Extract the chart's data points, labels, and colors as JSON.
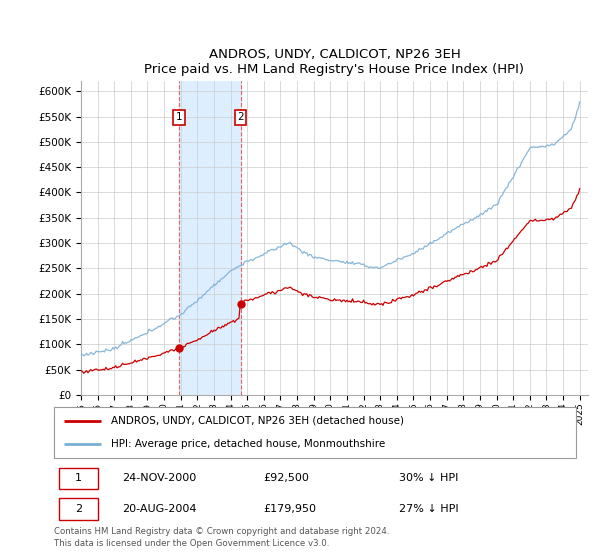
{
  "title": "ANDROS, UNDY, CALDICOT, NP26 3EH",
  "subtitle": "Price paid vs. HM Land Registry's House Price Index (HPI)",
  "ylabel_ticks": [
    "£0",
    "£50K",
    "£100K",
    "£150K",
    "£200K",
    "£250K",
    "£300K",
    "£350K",
    "£400K",
    "£450K",
    "£500K",
    "£550K",
    "£600K"
  ],
  "ylim": [
    0,
    620000
  ],
  "ytick_vals": [
    0,
    50000,
    100000,
    150000,
    200000,
    250000,
    300000,
    350000,
    400000,
    450000,
    500000,
    550000,
    600000
  ],
  "x_start_year": 1995,
  "x_end_year": 2025,
  "sale1_date": "24-NOV-2000",
  "sale1_price": 92500,
  "sale1_x": 2000.9,
  "sale2_date": "20-AUG-2004",
  "sale2_price": 179950,
  "sale2_x": 2004.6,
  "red_line_color": "#cc0000",
  "blue_line_color": "#7bafd4",
  "shaded_region_color": "#ddeeff",
  "grid_color": "#cccccc",
  "annotation_box_color": "#cc0000",
  "legend_label_red": "ANDROS, UNDY, CALDICOT, NP26 3EH (detached house)",
  "legend_label_blue": "HPI: Average price, detached house, Monmouthshire",
  "footer_text": "Contains HM Land Registry data © Crown copyright and database right 2024.\nThis data is licensed under the Open Government Licence v3.0.",
  "table_row1": [
    "1",
    "24-NOV-2000",
    "£92,500",
    "30% ↓ HPI"
  ],
  "table_row2": [
    "2",
    "20-AUG-2004",
    "£179,950",
    "27% ↓ HPI"
  ]
}
